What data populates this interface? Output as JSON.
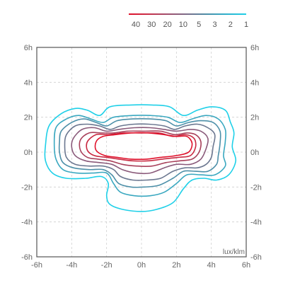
{
  "chart_data": {
    "type": "line",
    "chart_kind": "isolux contour plot",
    "unit_label": "lux/klm",
    "x_ticks": [
      "-6h",
      "-4h",
      "-2h",
      "0h",
      "2h",
      "4h",
      "6h"
    ],
    "y_ticks": [
      "6h",
      "4h",
      "2h",
      "0h",
      "-2h",
      "-4h",
      "-6h"
    ],
    "xlim": [
      -6,
      6
    ],
    "ylim": [
      -6,
      6
    ],
    "grid": true,
    "legend_position": "top-right",
    "legend_gradient": [
      "#e0112b",
      "#c8304a",
      "#a0506e",
      "#7a6e8a",
      "#4c8fa8",
      "#2fb0cc",
      "#1fd0e8"
    ],
    "series": [
      {
        "name": "1",
        "color": "#1fd0e8",
        "points": [
          [
            -5.3,
            1.5
          ],
          [
            -4.6,
            2.2
          ],
          [
            -3.8,
            2.5
          ],
          [
            -3.1,
            2.4
          ],
          [
            -2.4,
            2.1
          ],
          [
            -1.8,
            2.6
          ],
          [
            -0.6,
            2.7
          ],
          [
            0.6,
            2.7
          ],
          [
            1.6,
            2.6
          ],
          [
            2.4,
            2.1
          ],
          [
            3.2,
            2.4
          ],
          [
            4.0,
            2.6
          ],
          [
            4.8,
            2.4
          ],
          [
            5.1,
            1.7
          ],
          [
            5.3,
            1.1
          ],
          [
            5.2,
            0.3
          ],
          [
            5.4,
            -0.5
          ],
          [
            5.0,
            -1.3
          ],
          [
            4.3,
            -1.6
          ],
          [
            3.6,
            -1.5
          ],
          [
            2.9,
            -1.6
          ],
          [
            2.4,
            -2.1
          ],
          [
            1.8,
            -2.9
          ],
          [
            0.8,
            -3.3
          ],
          [
            0.0,
            -3.4
          ],
          [
            -1.0,
            -3.3
          ],
          [
            -1.8,
            -3.0
          ],
          [
            -2.0,
            -2.5
          ],
          [
            -1.9,
            -1.8
          ],
          [
            -2.3,
            -1.4
          ],
          [
            -3.2,
            -1.5
          ],
          [
            -4.3,
            -1.5
          ],
          [
            -5.1,
            -1.2
          ],
          [
            -5.5,
            -0.5
          ],
          [
            -5.5,
            0.4
          ]
        ]
      },
      {
        "name": "2",
        "color": "#3aa8c0",
        "points": [
          [
            -4.9,
            1.4
          ],
          [
            -4.3,
            1.9
          ],
          [
            -3.6,
            2.1
          ],
          [
            -2.9,
            1.9
          ],
          [
            -2.2,
            1.7
          ],
          [
            -1.6,
            2.0
          ],
          [
            -0.5,
            2.1
          ],
          [
            0.5,
            2.1
          ],
          [
            1.5,
            2.0
          ],
          [
            2.2,
            1.7
          ],
          [
            2.9,
            1.9
          ],
          [
            3.7,
            2.1
          ],
          [
            4.4,
            1.9
          ],
          [
            4.8,
            1.3
          ],
          [
            4.8,
            0.6
          ],
          [
            4.7,
            -0.2
          ],
          [
            4.8,
            -0.8
          ],
          [
            4.2,
            -1.3
          ],
          [
            3.4,
            -1.3
          ],
          [
            2.6,
            -1.3
          ],
          [
            2.0,
            -1.8
          ],
          [
            1.3,
            -2.3
          ],
          [
            0.5,
            -2.5
          ],
          [
            -0.4,
            -2.5
          ],
          [
            -1.2,
            -2.3
          ],
          [
            -1.6,
            -1.8
          ],
          [
            -2.0,
            -1.2
          ],
          [
            -2.8,
            -1.2
          ],
          [
            -3.7,
            -1.2
          ],
          [
            -4.5,
            -1.0
          ],
          [
            -4.9,
            -0.4
          ],
          [
            -5.0,
            0.4
          ]
        ]
      },
      {
        "name": "3",
        "color": "#4c8fa8",
        "points": [
          [
            -4.6,
            1.2
          ],
          [
            -4.0,
            1.7
          ],
          [
            -3.3,
            1.9
          ],
          [
            -2.6,
            1.7
          ],
          [
            -2.0,
            1.5
          ],
          [
            -1.4,
            1.8
          ],
          [
            -0.5,
            1.9
          ],
          [
            0.5,
            1.9
          ],
          [
            1.4,
            1.8
          ],
          [
            2.0,
            1.5
          ],
          [
            2.7,
            1.7
          ],
          [
            3.4,
            1.8
          ],
          [
            4.1,
            1.7
          ],
          [
            4.5,
            1.2
          ],
          [
            4.5,
            0.5
          ],
          [
            4.4,
            -0.2
          ],
          [
            4.3,
            -0.7
          ],
          [
            3.8,
            -1.1
          ],
          [
            3.1,
            -1.1
          ],
          [
            2.4,
            -1.1
          ],
          [
            1.8,
            -1.5
          ],
          [
            1.0,
            -1.9
          ],
          [
            0.2,
            -2.0
          ],
          [
            -0.6,
            -2.0
          ],
          [
            -1.3,
            -1.8
          ],
          [
            -1.7,
            -1.3
          ],
          [
            -2.2,
            -1.0
          ],
          [
            -3.0,
            -1.0
          ],
          [
            -3.9,
            -0.9
          ],
          [
            -4.5,
            -0.6
          ],
          [
            -4.7,
            0.0
          ],
          [
            -4.7,
            0.6
          ]
        ]
      },
      {
        "name": "5",
        "color": "#6b7790",
        "points": [
          [
            -4.3,
            1.0
          ],
          [
            -3.8,
            1.5
          ],
          [
            -3.1,
            1.6
          ],
          [
            -2.4,
            1.5
          ],
          [
            -1.8,
            1.3
          ],
          [
            -1.2,
            1.5
          ],
          [
            -0.4,
            1.6
          ],
          [
            0.4,
            1.6
          ],
          [
            1.3,
            1.5
          ],
          [
            1.9,
            1.3
          ],
          [
            2.5,
            1.5
          ],
          [
            3.2,
            1.6
          ],
          [
            3.8,
            1.4
          ],
          [
            4.2,
            1.0
          ],
          [
            4.1,
            0.3
          ],
          [
            4.0,
            -0.3
          ],
          [
            3.7,
            -0.7
          ],
          [
            3.2,
            -0.9
          ],
          [
            2.5,
            -0.9
          ],
          [
            1.8,
            -1.1
          ],
          [
            1.1,
            -1.5
          ],
          [
            0.3,
            -1.6
          ],
          [
            -0.5,
            -1.6
          ],
          [
            -1.2,
            -1.4
          ],
          [
            -1.6,
            -1.0
          ],
          [
            -2.2,
            -0.8
          ],
          [
            -3.0,
            -0.8
          ],
          [
            -3.8,
            -0.7
          ],
          [
            -4.3,
            -0.3
          ],
          [
            -4.4,
            0.4
          ]
        ]
      },
      {
        "name": "10",
        "color": "#8a5a7a",
        "points": [
          [
            -3.9,
            0.8
          ],
          [
            -3.4,
            1.3
          ],
          [
            -2.7,
            1.4
          ],
          [
            -2.0,
            1.2
          ],
          [
            -1.3,
            1.3
          ],
          [
            -0.4,
            1.4
          ],
          [
            0.5,
            1.4
          ],
          [
            1.3,
            1.3
          ],
          [
            2.0,
            1.2
          ],
          [
            2.8,
            1.3
          ],
          [
            3.4,
            1.2
          ],
          [
            3.8,
            0.8
          ],
          [
            3.7,
            0.2
          ],
          [
            3.4,
            -0.4
          ],
          [
            2.8,
            -0.7
          ],
          [
            2.0,
            -0.7
          ],
          [
            1.3,
            -0.9
          ],
          [
            0.5,
            -1.2
          ],
          [
            -0.3,
            -1.2
          ],
          [
            -1.1,
            -1.0
          ],
          [
            -1.7,
            -0.7
          ],
          [
            -2.4,
            -0.6
          ],
          [
            -3.2,
            -0.5
          ],
          [
            -3.8,
            -0.2
          ],
          [
            -4.0,
            0.3
          ]
        ]
      },
      {
        "name": "20",
        "color": "#a8405a",
        "points": [
          [
            -3.5,
            0.7
          ],
          [
            -3.0,
            1.1
          ],
          [
            -2.3,
            1.1
          ],
          [
            -1.6,
            1.1
          ],
          [
            -0.8,
            1.2
          ],
          [
            0.2,
            1.2
          ],
          [
            1.1,
            1.2
          ],
          [
            1.9,
            1.0
          ],
          [
            2.6,
            1.1
          ],
          [
            3.1,
            1.0
          ],
          [
            3.4,
            0.6
          ],
          [
            3.3,
            0.0
          ],
          [
            2.9,
            -0.4
          ],
          [
            2.2,
            -0.5
          ],
          [
            1.4,
            -0.6
          ],
          [
            0.6,
            -0.8
          ],
          [
            -0.3,
            -0.8
          ],
          [
            -1.1,
            -0.7
          ],
          [
            -1.8,
            -0.5
          ],
          [
            -2.5,
            -0.4
          ],
          [
            -3.1,
            -0.3
          ],
          [
            -3.5,
            0.1
          ]
        ]
      },
      {
        "name": "30",
        "color": "#c82840",
        "points": [
          [
            -3.1,
            0.6
          ],
          [
            -2.6,
            1.0
          ],
          [
            -1.9,
            1.0
          ],
          [
            -1.0,
            1.1
          ],
          [
            0.0,
            1.1
          ],
          [
            1.0,
            1.1
          ],
          [
            1.8,
            0.9
          ],
          [
            2.5,
            1.0
          ],
          [
            3.0,
            0.8
          ],
          [
            3.1,
            0.3
          ],
          [
            2.8,
            -0.2
          ],
          [
            2.1,
            -0.3
          ],
          [
            1.2,
            -0.4
          ],
          [
            0.4,
            -0.5
          ],
          [
            -0.5,
            -0.5
          ],
          [
            -1.3,
            -0.4
          ],
          [
            -2.0,
            -0.3
          ],
          [
            -2.7,
            -0.2
          ],
          [
            -3.1,
            0.1
          ]
        ]
      },
      {
        "name": "40",
        "color": "#e0112b",
        "points": [
          [
            -2.6,
            0.6
          ],
          [
            -2.2,
            0.9
          ],
          [
            -1.5,
            1.0
          ],
          [
            -0.6,
            1.1
          ],
          [
            0.4,
            1.1
          ],
          [
            1.3,
            1.0
          ],
          [
            2.0,
            0.9
          ],
          [
            2.6,
            0.9
          ],
          [
            2.9,
            0.5
          ],
          [
            2.7,
            0.0
          ],
          [
            2.0,
            -0.2
          ],
          [
            1.1,
            -0.3
          ],
          [
            0.3,
            -0.4
          ],
          [
            -0.6,
            -0.4
          ],
          [
            -1.4,
            -0.3
          ],
          [
            -2.1,
            -0.2
          ],
          [
            -2.6,
            0.1
          ]
        ]
      }
    ]
  }
}
